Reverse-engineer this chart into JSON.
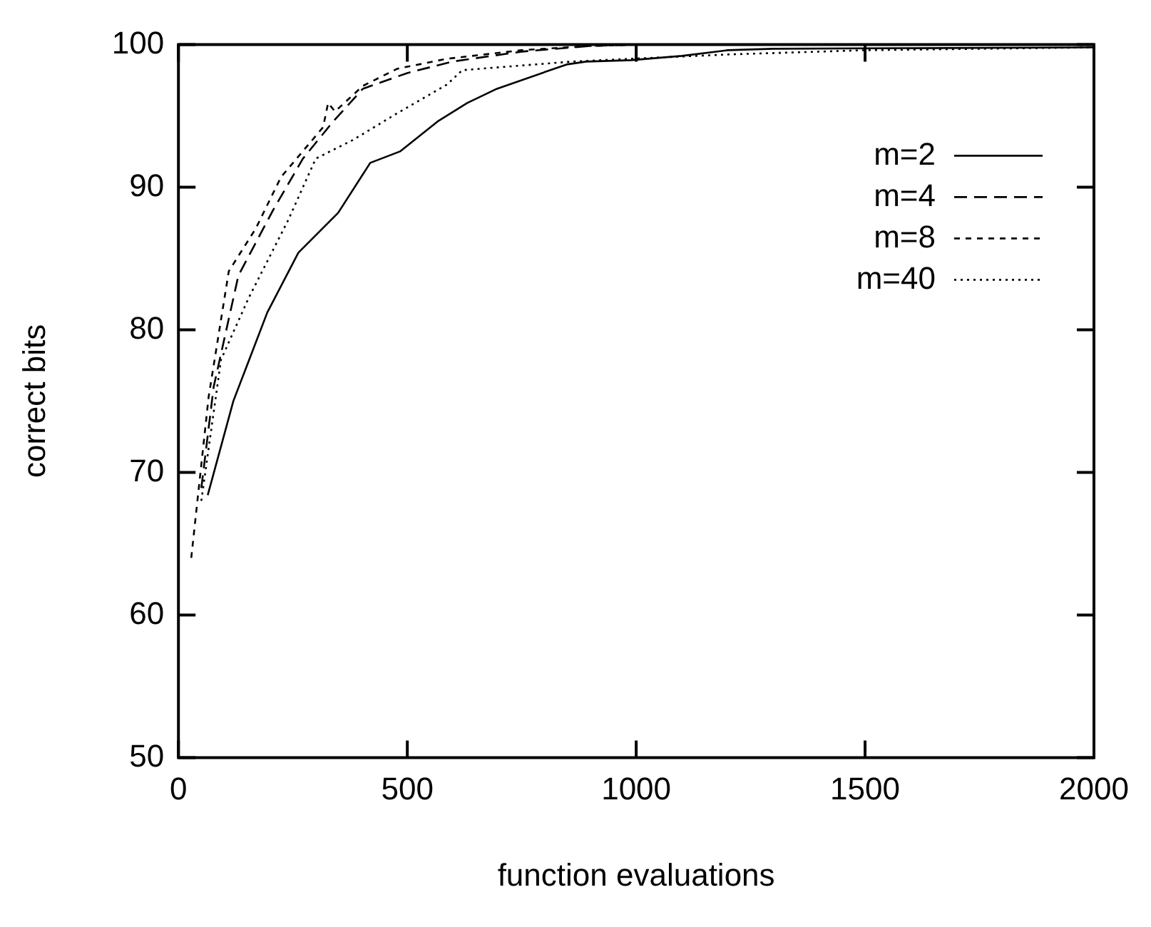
{
  "chart_data": {
    "type": "line",
    "xlabel": "function evaluations",
    "ylabel": "correct bits",
    "xlim": [
      0,
      2000
    ],
    "xticks": [
      0,
      500,
      1000,
      1500,
      2000
    ],
    "ylim": [
      50,
      100
    ],
    "yticks": [
      50,
      60,
      70,
      80,
      90,
      100
    ],
    "grid": false,
    "legend": "top right",
    "marker": "none",
    "series": [
      {
        "name": "m=2",
        "color": "#000000",
        "line_style": "solid",
        "x": [
          64,
          120,
          194,
          262,
          349,
          419,
          484,
          566,
          631,
          696,
          848,
          891,
          989,
          1100,
          1200,
          1300,
          2000
        ],
        "values": [
          68.4,
          75.0,
          81.2,
          85.4,
          88.2,
          91.7,
          92.5,
          94.6,
          95.9,
          96.9,
          98.6,
          98.8,
          98.9,
          99.2,
          99.6,
          99.7,
          99.8
        ]
      },
      {
        "name": "m=4",
        "color": "#000000",
        "line_style": "dashed",
        "x": [
          50,
          77,
          131,
          207,
          272,
          338,
          403,
          500,
          598,
          750,
          900,
          1000,
          2000
        ],
        "values": [
          68.9,
          76.0,
          83.8,
          88.4,
          92.0,
          94.6,
          96.9,
          98.0,
          98.8,
          99.5,
          99.9,
          100,
          100
        ]
      },
      {
        "name": "m=8",
        "color": "#000000",
        "line_style": "dashed",
        "x": [
          28,
          66,
          110,
          169,
          224,
          316,
          327,
          342,
          403,
          478,
          587,
          750,
          900,
          1000,
          2000
        ],
        "values": [
          64.0,
          75.3,
          84.1,
          87.1,
          90.7,
          94.2,
          95.9,
          95.3,
          97.1,
          98.3,
          99.0,
          99.6,
          99.9,
          100,
          100
        ]
      },
      {
        "name": "m=40",
        "color": "#000000",
        "line_style": "dotted",
        "x": [
          50,
          93,
          153,
          240,
          300,
          381,
          479,
          587,
          620,
          859,
          989,
          1200,
          1500,
          2000
        ],
        "values": [
          68.0,
          77.9,
          82.2,
          87.7,
          92.0,
          93.3,
          95.2,
          97.2,
          98.2,
          98.8,
          99.0,
          99.3,
          99.6,
          99.8
        ]
      }
    ]
  }
}
